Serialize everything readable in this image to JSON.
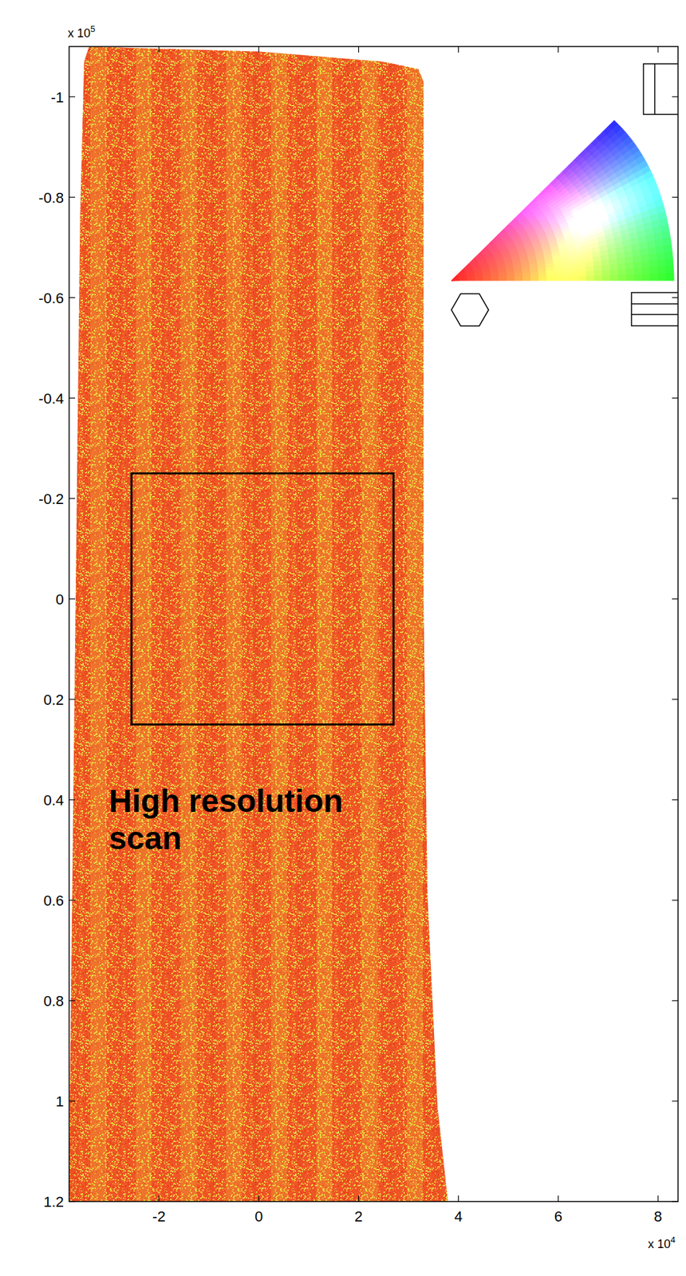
{
  "chart_data": {
    "type": "map",
    "xlim": [
      -3.8,
      8.4
    ],
    "ylim": [
      -1.1,
      1.2
    ],
    "xticks": [
      -2,
      0,
      2,
      4,
      6,
      8
    ],
    "yticks": [
      -1,
      -0.8,
      -0.6,
      -0.4,
      -0.2,
      0,
      0.2,
      0.4,
      0.6,
      0.8,
      1,
      1.2
    ],
    "x_multiplier": {
      "base": "x 10",
      "exponent": 4
    },
    "y_multiplier": {
      "base": "x 10",
      "exponent": 5
    },
    "color": "#ef5526",
    "outline": {
      "x": [
        -3.5,
        -3.4,
        0,
        2.5,
        3.2,
        3.3,
        3.3,
        3.38,
        3.58,
        3.79,
        -3.82,
        -3.8,
        -3.58
      ],
      "y": [
        -1.07,
        -1.1,
        -1.09,
        -1.07,
        -1.055,
        -1.03,
        0,
        0.59,
        1.01,
        1.2,
        1.2,
        1.11,
        -0.76
      ]
    },
    "annotation": {
      "text": "High resolution scan",
      "x": [
        -2.55,
        2.7
      ],
      "y": [
        -0.25,
        0.25
      ]
    }
  }
}
